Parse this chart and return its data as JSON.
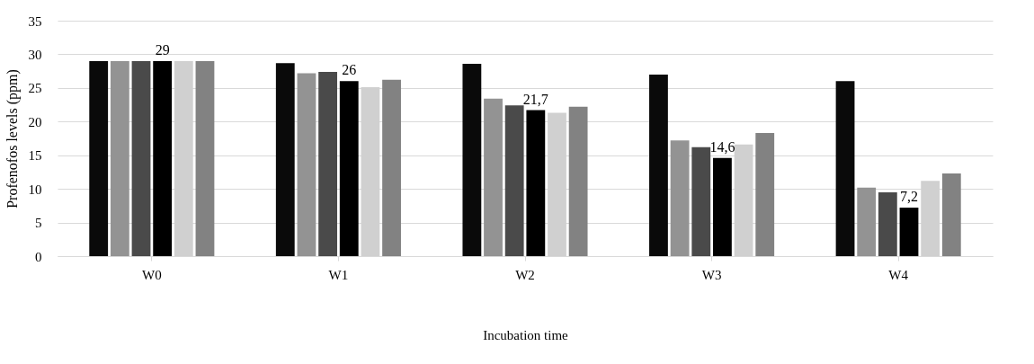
{
  "chart_data": {
    "type": "bar",
    "xlabel": "Incubation time",
    "ylabel": "Profenofos levels (ppm)",
    "categories": [
      "W0",
      "W1",
      "W2",
      "W3",
      "W4"
    ],
    "series": [
      {
        "color": "#0a0a0a",
        "values": [
          29,
          28.7,
          28.6,
          27.0,
          26.0
        ]
      },
      {
        "color": "#939393",
        "values": [
          29,
          27.2,
          23.4,
          17.2,
          10.2
        ]
      },
      {
        "color": "#4a4a4a",
        "values": [
          29,
          27.4,
          22.4,
          16.2,
          9.5
        ]
      },
      {
        "color": "#000000",
        "values": [
          29,
          26,
          21.7,
          14.6,
          7.2
        ],
        "value_labels": [
          "29",
          "26",
          "21,7",
          "14,6",
          "7,2"
        ]
      },
      {
        "color": "#d0d0d0",
        "values": [
          29,
          25.1,
          21.3,
          16.6,
          11.2
        ]
      },
      {
        "color": "#828282",
        "values": [
          29,
          26.2,
          22.2,
          18.3,
          12.3
        ]
      }
    ],
    "ylim": [
      0,
      35
    ],
    "yticks": [
      0,
      5,
      10,
      15,
      20,
      25,
      30,
      35
    ],
    "grid": "y",
    "legend": false
  }
}
